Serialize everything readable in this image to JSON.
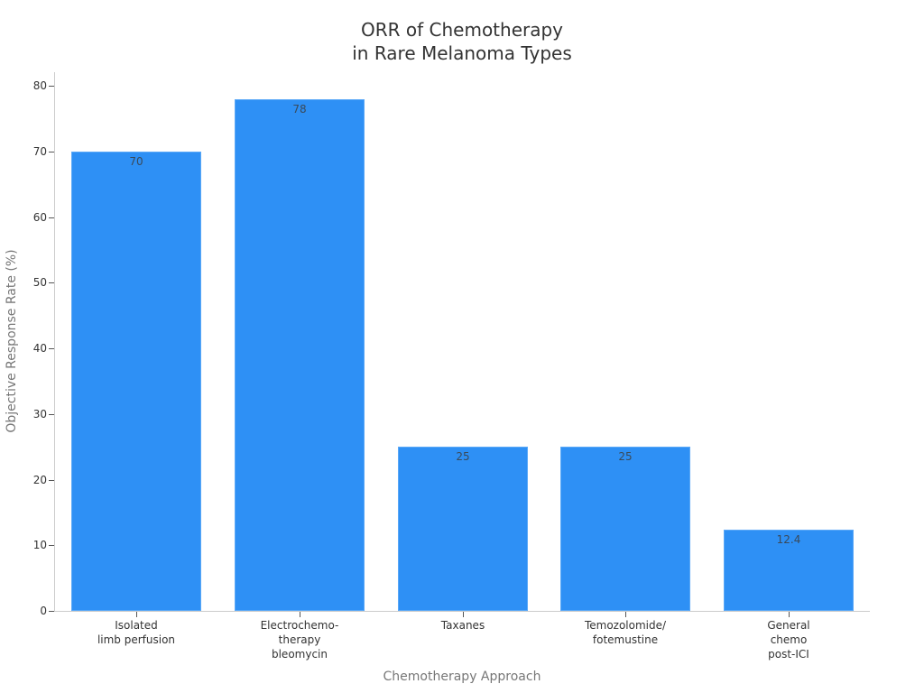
{
  "chart_data": {
    "type": "bar",
    "title": "ORR of Chemotherapy\nin Rare Melanoma Types",
    "title_lines": [
      "ORR of Chemotherapy",
      "in Rare Melanoma Types"
    ],
    "xlabel": "Chemotherapy Approach",
    "ylabel": "Objective Response Rate (%)",
    "categories": [
      "Isolated limb perfusion",
      "Electrochemo-therapy bleomycin",
      "Taxanes",
      "Temozolomide/ fotemustine",
      "General chemo post-ICI"
    ],
    "category_lines": [
      [
        "Isolated",
        "limb perfusion"
      ],
      [
        "Electrochemo-",
        "therapy",
        "bleomycin"
      ],
      [
        "Taxanes"
      ],
      [
        "Temozolomide/",
        "fotemustine"
      ],
      [
        "General",
        "chemo",
        "post-ICI"
      ]
    ],
    "values": [
      70,
      78,
      25,
      25,
      12.4
    ],
    "data_labels": [
      "70",
      "78",
      "25",
      "25",
      "12.4"
    ],
    "ylim": [
      0,
      80
    ],
    "yticks": [
      0,
      10,
      20,
      30,
      40,
      50,
      60,
      70,
      80
    ],
    "grid": false,
    "legend": null,
    "bar_color": "#2e90f5"
  }
}
